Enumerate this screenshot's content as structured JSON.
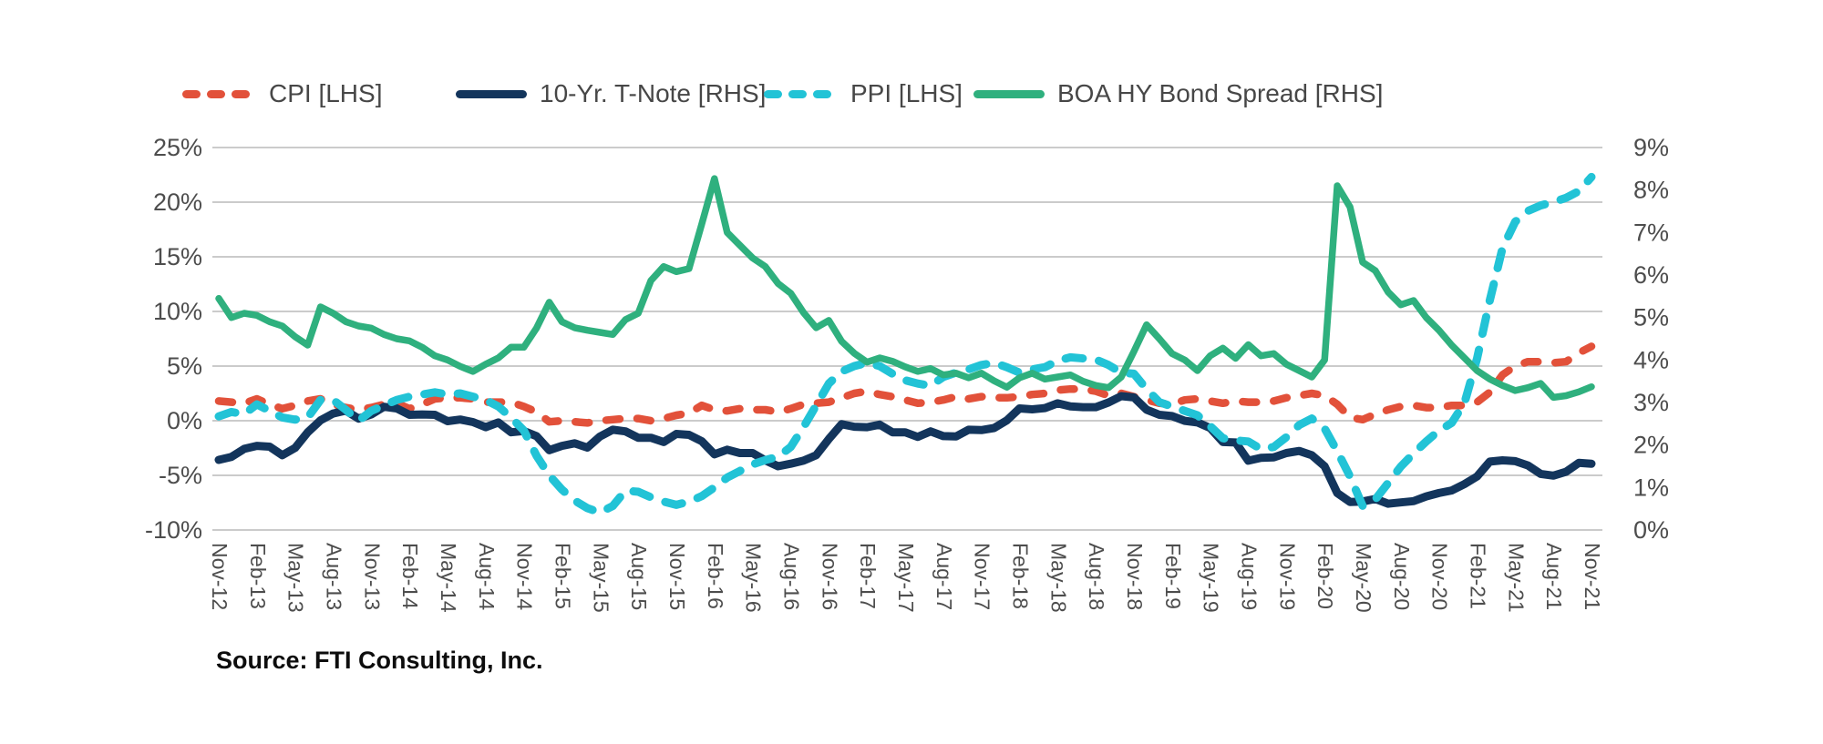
{
  "legend": [
    {
      "label": "CPI [LHS]",
      "color": "#E2513A",
      "style": "dashed"
    },
    {
      "label": "10-Yr. T-Note [RHS]",
      "color": "#13355C",
      "style": "solid"
    },
    {
      "label": "PPI [LHS]",
      "color": "#22C3D6",
      "style": "dashed"
    },
    {
      "label": "BOA HY Bond Spread [RHS]",
      "color": "#2FB07E",
      "style": "solid"
    }
  ],
  "source_note": "Source: FTI Consulting, Inc.",
  "chart_data": {
    "type": "line",
    "title": "",
    "grid": true,
    "legend_position": "top",
    "x_monthly": {
      "start": "Nov-12",
      "end": "Nov-21",
      "points": 109
    },
    "x_tick_labels": [
      "Nov-12",
      "Feb-13",
      "May-13",
      "Aug-13",
      "Nov-13",
      "Feb-14",
      "May-14",
      "Aug-14",
      "Nov-14",
      "Feb-15",
      "May-15",
      "Aug-15",
      "Nov-15",
      "Feb-16",
      "May-16",
      "Aug-16",
      "Nov-16",
      "Feb-17",
      "May-17",
      "Aug-17",
      "Nov-17",
      "Feb-18",
      "May-18",
      "Aug-18",
      "Nov-18",
      "Feb-19",
      "May-19",
      "Aug-19",
      "Nov-19",
      "Feb-20",
      "May-20",
      "Aug-20",
      "Nov-20",
      "Feb-21",
      "May-21",
      "Aug-21",
      "Nov-21"
    ],
    "left_axis": {
      "min": -10,
      "max": 25,
      "ticks": [
        "25%",
        "20%",
        "15%",
        "10%",
        "5%",
        "0%",
        "-5%",
        "-10%"
      ]
    },
    "right_axis": {
      "min": 0,
      "max": 9,
      "ticks": [
        "9%",
        "8%",
        "7%",
        "6%",
        "5%",
        "4%",
        "3%",
        "2%",
        "1%",
        "0%"
      ]
    },
    "gridline_color": "#cbcbcb",
    "series": [
      {
        "name": "CPI [LHS]",
        "axis": "left",
        "color": "#E2513A",
        "dash": true,
        "values": [
          1.8,
          1.7,
          1.6,
          2.0,
          1.5,
          1.1,
          1.4,
          1.8,
          2.0,
          1.5,
          1.2,
          1.0,
          1.2,
          1.5,
          1.6,
          1.1,
          1.5,
          2.0,
          2.1,
          2.1,
          2.0,
          1.7,
          1.7,
          1.7,
          1.3,
          0.8,
          -0.1,
          0.0,
          -0.1,
          -0.2,
          0.0,
          0.1,
          0.2,
          0.2,
          0.0,
          0.2,
          0.5,
          0.7,
          1.4,
          1.0,
          0.9,
          1.1,
          1.0,
          1.0,
          0.8,
          1.1,
          1.5,
          1.6,
          1.7,
          2.1,
          2.5,
          2.7,
          2.4,
          2.2,
          1.9,
          1.6,
          1.7,
          1.9,
          2.2,
          2.0,
          2.2,
          2.1,
          2.1,
          2.2,
          2.4,
          2.5,
          2.8,
          2.9,
          2.9,
          2.7,
          2.3,
          2.5,
          2.2,
          1.9,
          1.6,
          1.5,
          1.9,
          2.0,
          1.8,
          1.6,
          1.8,
          1.7,
          1.7,
          1.8,
          2.1,
          2.3,
          2.5,
          2.3,
          1.5,
          0.3,
          0.1,
          0.6,
          1.0,
          1.3,
          1.4,
          1.2,
          1.2,
          1.4,
          1.4,
          1.7,
          2.6,
          4.2,
          5.0,
          5.4,
          5.4,
          5.3,
          5.4,
          6.2,
          6.8
        ]
      },
      {
        "name": "10-Yr. T-Note [RHS]",
        "axis": "right",
        "color": "#13355C",
        "dash": false,
        "values": [
          1.65,
          1.72,
          1.91,
          1.98,
          1.96,
          1.76,
          1.93,
          2.3,
          2.58,
          2.74,
          2.81,
          2.62,
          2.72,
          2.9,
          2.86,
          2.71,
          2.72,
          2.71,
          2.56,
          2.6,
          2.54,
          2.42,
          2.53,
          2.3,
          2.33,
          2.21,
          1.88,
          1.98,
          2.04,
          1.94,
          2.2,
          2.36,
          2.32,
          2.17,
          2.17,
          2.07,
          2.26,
          2.24,
          2.09,
          1.78,
          1.89,
          1.81,
          1.81,
          1.64,
          1.5,
          1.56,
          1.63,
          1.76,
          2.14,
          2.49,
          2.43,
          2.42,
          2.48,
          2.3,
          2.3,
          2.19,
          2.32,
          2.21,
          2.2,
          2.36,
          2.35,
          2.4,
          2.58,
          2.86,
          2.84,
          2.87,
          2.98,
          2.91,
          2.89,
          2.89,
          3.0,
          3.15,
          3.12,
          2.83,
          2.71,
          2.68,
          2.57,
          2.53,
          2.4,
          2.07,
          2.06,
          1.63,
          1.7,
          1.71,
          1.81,
          1.86,
          1.76,
          1.5,
          0.87,
          0.66,
          0.67,
          0.73,
          0.62,
          0.65,
          0.68,
          0.79,
          0.87,
          0.93,
          1.08,
          1.26,
          1.61,
          1.64,
          1.62,
          1.52,
          1.32,
          1.28,
          1.37,
          1.58,
          1.56
        ]
      },
      {
        "name": "PPI [LHS]",
        "axis": "left",
        "color": "#22C3D6",
        "dash": true,
        "values": [
          0.4,
          0.8,
          0.6,
          1.5,
          0.9,
          0.3,
          0.1,
          0.3,
          1.9,
          1.9,
          1.0,
          0.0,
          0.9,
          1.4,
          1.9,
          2.2,
          2.4,
          2.6,
          2.4,
          2.5,
          2.2,
          1.9,
          1.3,
          0.3,
          -0.9,
          -3.2,
          -5.0,
          -6.3,
          -7.3,
          -8.0,
          -8.4,
          -7.8,
          -6.4,
          -6.5,
          -7.0,
          -7.4,
          -7.7,
          -7.4,
          -6.9,
          -6.1,
          -5.2,
          -4.6,
          -4.0,
          -3.6,
          -3.3,
          -2.4,
          -0.6,
          1.4,
          3.4,
          4.5,
          5.0,
          5.3,
          5.0,
          4.3,
          3.7,
          3.4,
          3.2,
          4.0,
          4.4,
          4.7,
          5.1,
          5.3,
          4.9,
          4.4,
          4.7,
          4.9,
          5.5,
          5.8,
          5.7,
          5.6,
          5.1,
          4.4,
          4.3,
          2.9,
          1.7,
          1.3,
          0.9,
          0.5,
          -0.5,
          -1.6,
          -1.8,
          -1.9,
          -2.6,
          -2.4,
          -1.5,
          -0.4,
          0.2,
          -0.7,
          -2.8,
          -5.1,
          -7.8,
          -7.2,
          -5.7,
          -4.2,
          -3.0,
          -1.9,
          -0.9,
          -0.2,
          1.6,
          5.7,
          11.0,
          15.8,
          18.2,
          19.2,
          19.7,
          20.0,
          20.4,
          21.0,
          22.3
        ]
      },
      {
        "name": "BOA HY Bond Spread [RHS]",
        "axis": "right",
        "color": "#2FB07E",
        "dash": false,
        "values": [
          5.45,
          5.0,
          5.1,
          5.05,
          4.9,
          4.8,
          4.55,
          4.35,
          5.25,
          5.1,
          4.9,
          4.8,
          4.75,
          4.6,
          4.5,
          4.45,
          4.3,
          4.1,
          4.0,
          3.85,
          3.73,
          3.9,
          4.05,
          4.3,
          4.3,
          4.75,
          5.36,
          4.9,
          4.76,
          4.7,
          4.65,
          4.6,
          4.95,
          5.1,
          5.87,
          6.2,
          6.08,
          6.15,
          7.2,
          8.27,
          7.0,
          6.7,
          6.4,
          6.2,
          5.8,
          5.57,
          5.12,
          4.76,
          4.93,
          4.44,
          4.16,
          3.95,
          4.05,
          3.97,
          3.84,
          3.73,
          3.8,
          3.65,
          3.69,
          3.58,
          3.69,
          3.51,
          3.36,
          3.58,
          3.69,
          3.55,
          3.6,
          3.65,
          3.5,
          3.4,
          3.35,
          3.6,
          4.2,
          4.83,
          4.5,
          4.15,
          4.0,
          3.75,
          4.1,
          4.28,
          4.04,
          4.36,
          4.1,
          4.15,
          3.9,
          3.75,
          3.6,
          4.0,
          8.1,
          7.6,
          6.3,
          6.1,
          5.6,
          5.3,
          5.4,
          5.0,
          4.7,
          4.35,
          4.05,
          3.75,
          3.55,
          3.4,
          3.28,
          3.35,
          3.45,
          3.12,
          3.16,
          3.25,
          3.37
        ]
      }
    ]
  }
}
